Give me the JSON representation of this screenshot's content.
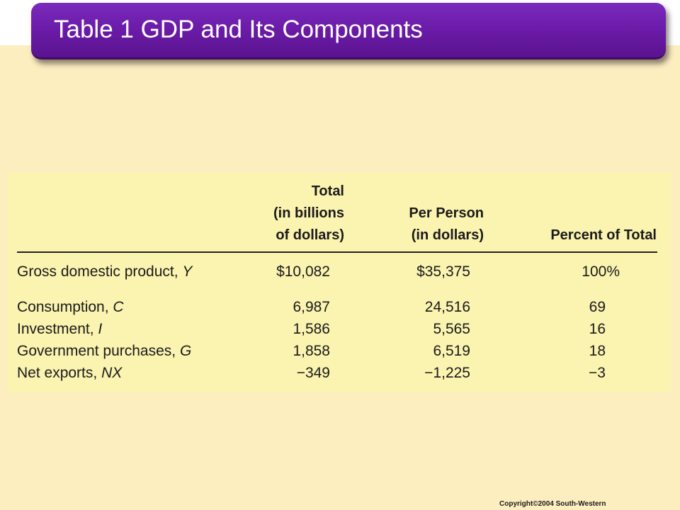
{
  "title": "Table 1 GDP and Its Components",
  "columns": {
    "total": [
      "Total",
      "(in billions",
      "of dollars)"
    ],
    "per_person": [
      "Per Person",
      "(in dollars)"
    ],
    "percent": [
      "Percent of Total"
    ]
  },
  "rows": [
    {
      "label_main": "Gross domestic product, ",
      "label_var": "Y",
      "total": "$10,082",
      "per_person": "$35,375",
      "percent": "100%"
    },
    {
      "label_main": "Consumption, ",
      "label_var": "C",
      "total": "6,987",
      "per_person": "24,516",
      "percent": "69"
    },
    {
      "label_main": "Investment, ",
      "label_var": "I",
      "total": "1,586",
      "per_person": "5,565",
      "percent": "16"
    },
    {
      "label_main": "Government purchases, ",
      "label_var": "G",
      "total": "1,858",
      "per_person": "6,519",
      "percent": "18"
    },
    {
      "label_main": "Net exports, ",
      "label_var": "NX",
      "total": "−349",
      "per_person": "−1,225",
      "percent": "−3"
    }
  ],
  "copyright": "Copyright©2004  South-Western",
  "colors": {
    "title_bar": "#6c1ca9",
    "background": "#fdeec0",
    "table_panel": "#fbf3b0"
  }
}
